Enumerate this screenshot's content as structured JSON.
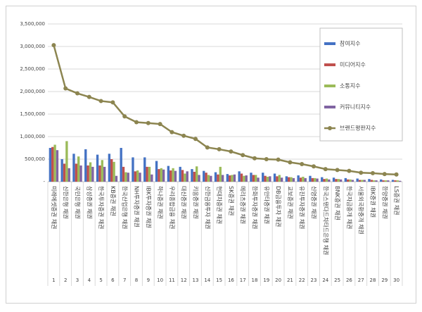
{
  "chart_data": {
    "type": "bar",
    "categories": [
      "미래에셋증권 채권",
      "신한은행 채권",
      "국민은행 채권",
      "삼성증권 채권",
      "한국투자증권 채권",
      "KB증권 채권",
      "한국산업은행 채권",
      "NH투자증권 채권",
      "IBK투자증권 채권",
      "하나증권 채권",
      "우리종합금융 채권",
      "대신증권 채권",
      "키움증권 채권",
      "신한금융투자 채권",
      "현대차증권 채권",
      "SK증권 채권",
      "메리츠증권 채권",
      "한화투자증권 채권",
      "유안타증권 채권",
      "DB금융투자 채권",
      "교보증권 채권",
      "유진투자증권 채권",
      "신영증권 채권",
      "한국스탠다드차타드은행 채권",
      "BNK증권 채권",
      "한국자금중개 채권",
      "서울외국환중개 채권",
      "IBK증권 채권",
      "한양증권 채권",
      "LS증권 채권"
    ],
    "ranks": [
      1,
      2,
      3,
      4,
      5,
      6,
      7,
      8,
      9,
      10,
      11,
      12,
      13,
      14,
      15,
      16,
      17,
      18,
      19,
      20,
      21,
      22,
      23,
      24,
      25,
      26,
      27,
      28,
      29,
      30
    ],
    "series": [
      {
        "name": "참여지수",
        "color": "#4472c4",
        "values": [
          750000,
          500000,
          620000,
          720000,
          600000,
          620000,
          750000,
          540000,
          540000,
          460000,
          350000,
          330000,
          280000,
          240000,
          210000,
          170000,
          230000,
          200000,
          200000,
          180000,
          120000,
          140000,
          130000,
          100000,
          90000,
          80000,
          70000,
          60000,
          50000,
          40000
        ]
      },
      {
        "name": "미디어지수",
        "color": "#c0504d",
        "values": [
          770000,
          400000,
          400000,
          360000,
          360000,
          500000,
          330000,
          230000,
          330000,
          280000,
          250000,
          260000,
          220000,
          200000,
          160000,
          140000,
          180000,
          150000,
          130000,
          120000,
          100000,
          90000,
          80000,
          60000,
          60000,
          50000,
          40000,
          40000,
          30000,
          30000
        ]
      },
      {
        "name": "소통지수",
        "color": "#9bbb59",
        "values": [
          820000,
          900000,
          560000,
          430000,
          480000,
          440000,
          210000,
          250000,
          330000,
          300000,
          300000,
          180000,
          340000,
          150000,
          330000,
          150000,
          130000,
          150000,
          110000,
          150000,
          100000,
          110000,
          80000,
          70000,
          60000,
          50000,
          40000,
          30000,
          30000,
          30000
        ]
      },
      {
        "name": "커뮤니티지수",
        "color": "#8064a2",
        "values": [
          700000,
          300000,
          360000,
          330000,
          330000,
          130000,
          200000,
          200000,
          160000,
          270000,
          240000,
          230000,
          150000,
          130000,
          150000,
          160000,
          140000,
          90000,
          120000,
          90000,
          80000,
          80000,
          70000,
          50000,
          50000,
          40000,
          40000,
          30000,
          30000,
          20000
        ]
      },
      {
        "name": "브랜드평판지수",
        "color": "#8c8550",
        "type": "line",
        "values": [
          3030000,
          2070000,
          1960000,
          1880000,
          1790000,
          1760000,
          1450000,
          1320000,
          1300000,
          1280000,
          1100000,
          1020000,
          950000,
          760000,
          720000,
          670000,
          590000,
          520000,
          500000,
          490000,
          430000,
          390000,
          340000,
          280000,
          260000,
          240000,
          200000,
          190000,
          170000,
          160000
        ]
      }
    ],
    "ylim": [
      0,
      3500000
    ],
    "yticks": [
      {
        "value": 0,
        "label": "-"
      },
      {
        "value": 500000,
        "label": "500,000"
      },
      {
        "value": 1000000,
        "label": "1,000,000"
      },
      {
        "value": 1500000,
        "label": "1,500,000"
      },
      {
        "value": 2000000,
        "label": "2,000,000"
      },
      {
        "value": 2500000,
        "label": "2,500,000"
      },
      {
        "value": 3000000,
        "label": "3,000,000"
      },
      {
        "value": 3500000,
        "label": "3,500,000"
      }
    ],
    "grid": true,
    "legend": "upper right"
  }
}
